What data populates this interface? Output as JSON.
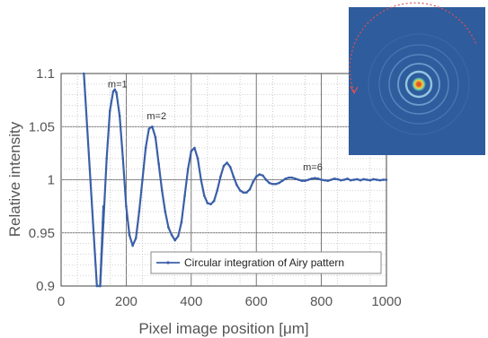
{
  "chart_data": {
    "type": "line",
    "xlabel": "Pixel image position [μm]",
    "ylabel": "Relative intensity",
    "xlim": [
      0,
      1000
    ],
    "ylim": [
      0.9,
      1.1
    ],
    "xticks": [
      "0",
      "200",
      "400",
      "600",
      "800",
      "1000"
    ],
    "yticks": [
      "0.9",
      "0.95",
      "1",
      "1.05",
      "1.1"
    ],
    "grid": true,
    "legend_position": "bottom-right",
    "series": [
      {
        "name": "Circular integration of Airy pattern",
        "color": "#3b5fa8",
        "x": [
          70,
          80,
          90,
          100,
          110,
          120,
          130,
          140,
          150,
          160,
          165,
          170,
          180,
          190,
          200,
          210,
          220,
          230,
          240,
          250,
          260,
          270,
          280,
          290,
          300,
          310,
          320,
          330,
          340,
          350,
          360,
          370,
          380,
          390,
          400,
          410,
          420,
          430,
          440,
          450,
          460,
          470,
          480,
          490,
          500,
          510,
          520,
          530,
          540,
          550,
          560,
          570,
          580,
          590,
          600,
          610,
          620,
          630,
          640,
          650,
          660,
          670,
          680,
          690,
          700,
          710,
          720,
          730,
          740,
          750,
          760,
          770,
          780,
          790,
          800,
          810,
          820,
          830,
          840,
          850,
          860,
          870,
          880,
          890,
          900,
          910,
          920,
          930,
          940,
          950,
          960,
          970,
          980,
          990,
          1000
        ],
        "y": [
          1.1,
          1.05,
          1.0,
          0.95,
          0.9,
          0.9,
          0.96,
          1.02,
          1.065,
          1.083,
          1.085,
          1.082,
          1.06,
          1.02,
          0.975,
          0.948,
          0.938,
          0.945,
          0.97,
          1.0,
          1.03,
          1.048,
          1.05,
          1.04,
          1.015,
          0.99,
          0.97,
          0.955,
          0.948,
          0.943,
          0.947,
          0.96,
          0.985,
          1.01,
          1.027,
          1.03,
          1.02,
          1.0,
          0.985,
          0.978,
          0.977,
          0.98,
          0.99,
          1.003,
          1.013,
          1.016,
          1.012,
          1.003,
          0.995,
          0.99,
          0.988,
          0.988,
          0.991,
          0.998,
          1.003,
          1.005,
          1.004,
          1.0,
          0.997,
          0.996,
          0.996,
          0.997,
          0.999,
          1.001,
          1.002,
          1.002,
          1.001,
          1.0,
          0.999,
          0.999,
          1.0,
          1.001,
          1.0015,
          1.001,
          1.0,
          0.9995,
          0.999,
          1.0,
          1.001,
          1.0005,
          0.9995,
          1.0,
          1.001,
          0.9995,
          1.0,
          1.0005,
          0.9995,
          1.0005,
          1.0,
          0.9995,
          1.0005,
          1.0,
          0.9995,
          1.0,
          1.0
        ]
      },
      {
        "name": "",
        "color": "#3b5fa8",
        "x": [
          120,
          122,
          124,
          126,
          128,
          130
        ],
        "y": [
          0.9,
          0.915,
          0.93,
          0.945,
          0.96,
          0.975
        ]
      }
    ],
    "annotations": [
      {
        "text": "m=1",
        "x": 160,
        "y": 1.082
      },
      {
        "text": "m=2",
        "x": 280,
        "y": 1.052
      },
      {
        "text": "m=6",
        "x": 760,
        "y": 1.004
      }
    ]
  },
  "inset": {
    "background": "#2f5c9c",
    "arc_color": "#e05050",
    "ring_colors": [
      "#d9401e",
      "#f4d03a",
      "#66cdb0",
      "#2c4f8f"
    ]
  }
}
